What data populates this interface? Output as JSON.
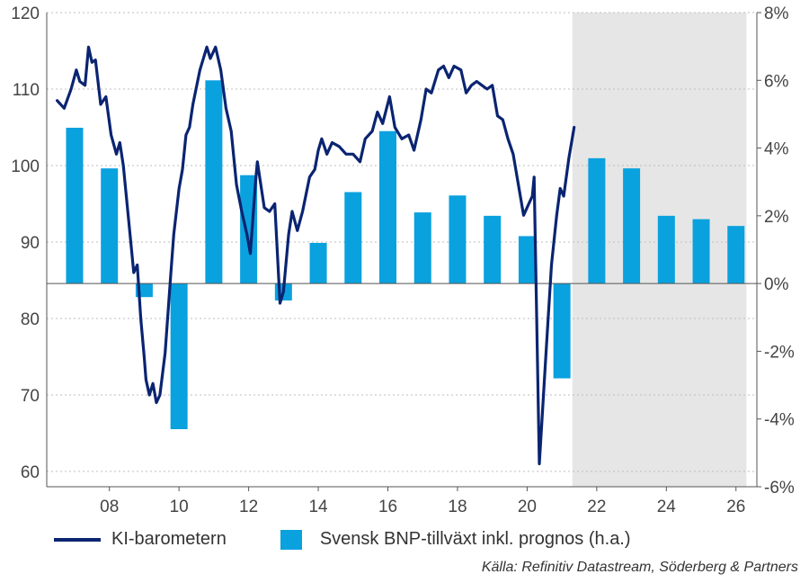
{
  "chart_data": {
    "type": "bar+line",
    "left_axis": {
      "ticks": [
        60,
        70,
        80,
        90,
        100,
        110,
        120
      ],
      "ylim": [
        58,
        120
      ]
    },
    "right_axis": {
      "ticks": [
        "-6%",
        "-4%",
        "-2%",
        "0%",
        "2%",
        "4%",
        "6%",
        "8%"
      ],
      "values": [
        -6,
        -4,
        -2,
        0,
        2,
        4,
        6,
        8
      ],
      "ylim": [
        -6,
        8
      ]
    },
    "x_axis": {
      "ticks": [
        "08",
        "10",
        "12",
        "14",
        "16",
        "18",
        "20",
        "22",
        "24",
        "26"
      ],
      "tick_years": [
        2008,
        2010,
        2012,
        2014,
        2016,
        2018,
        2020,
        2022,
        2024,
        2026
      ],
      "xlim": [
        2006.2,
        2026.6
      ]
    },
    "forecast_shading": {
      "from": 2021.3,
      "to": 2026.3
    },
    "bars": {
      "name": "Svensk BNP-tillväxt inkl. prognos (h.a.)",
      "color": "#0aa1df",
      "years": [
        2007,
        2008,
        2009,
        2010,
        2011,
        2012,
        2013,
        2014,
        2015,
        2016,
        2017,
        2018,
        2019,
        2020,
        2021,
        2022,
        2023,
        2024,
        2025,
        2026
      ],
      "values": [
        4.6,
        3.4,
        -0.4,
        -4.3,
        6.0,
        3.2,
        -0.5,
        1.2,
        2.7,
        4.5,
        2.1,
        2.6,
        2.0,
        1.4,
        -2.8,
        3.7,
        3.4,
        2.0,
        1.9,
        1.7
      ]
    },
    "line": {
      "name": "KI-barometern",
      "color": "#0a2471",
      "points": [
        [
          2006.5,
          108.5
        ],
        [
          2006.7,
          107.5
        ],
        [
          2006.9,
          110.0
        ],
        [
          2007.05,
          112.5
        ],
        [
          2007.15,
          111.0
        ],
        [
          2007.3,
          110.5
        ],
        [
          2007.4,
          115.5
        ],
        [
          2007.5,
          113.5
        ],
        [
          2007.6,
          113.8
        ],
        [
          2007.75,
          108.0
        ],
        [
          2007.9,
          109.0
        ],
        [
          2008.05,
          104.0
        ],
        [
          2008.2,
          101.5
        ],
        [
          2008.3,
          103.0
        ],
        [
          2008.4,
          100.0
        ],
        [
          2008.55,
          93.0
        ],
        [
          2008.7,
          86.0
        ],
        [
          2008.8,
          87.0
        ],
        [
          2008.9,
          80.0
        ],
        [
          2009.0,
          75.0
        ],
        [
          2009.05,
          72.0
        ],
        [
          2009.15,
          70.0
        ],
        [
          2009.25,
          71.5
        ],
        [
          2009.35,
          69.0
        ],
        [
          2009.45,
          70.0
        ],
        [
          2009.6,
          75.5
        ],
        [
          2009.75,
          85.0
        ],
        [
          2009.85,
          91.0
        ],
        [
          2010.0,
          97.0
        ],
        [
          2010.1,
          99.5
        ],
        [
          2010.2,
          104.0
        ],
        [
          2010.3,
          105.0
        ],
        [
          2010.4,
          108.0
        ],
        [
          2010.6,
          112.5
        ],
        [
          2010.8,
          115.5
        ],
        [
          2010.9,
          114.0
        ],
        [
          2011.05,
          115.5
        ],
        [
          2011.2,
          112.5
        ],
        [
          2011.35,
          107.5
        ],
        [
          2011.5,
          104.5
        ],
        [
          2011.65,
          97.5
        ],
        [
          2011.8,
          94.0
        ],
        [
          2011.95,
          91.0
        ],
        [
          2012.05,
          88.5
        ],
        [
          2012.2,
          98.0
        ],
        [
          2012.25,
          100.5
        ],
        [
          2012.45,
          94.5
        ],
        [
          2012.6,
          94.0
        ],
        [
          2012.75,
          95.0
        ],
        [
          2012.9,
          82.0
        ],
        [
          2013.0,
          83.5
        ],
        [
          2013.15,
          91.0
        ],
        [
          2013.25,
          94.0
        ],
        [
          2013.4,
          91.5
        ],
        [
          2013.55,
          94.0
        ],
        [
          2013.75,
          98.5
        ],
        [
          2013.9,
          99.5
        ],
        [
          2014.0,
          102.0
        ],
        [
          2014.1,
          103.5
        ],
        [
          2014.25,
          101.5
        ],
        [
          2014.4,
          103.0
        ],
        [
          2014.6,
          102.5
        ],
        [
          2014.8,
          101.5
        ],
        [
          2015.0,
          101.5
        ],
        [
          2015.2,
          100.5
        ],
        [
          2015.35,
          103.5
        ],
        [
          2015.55,
          104.5
        ],
        [
          2015.7,
          107.0
        ],
        [
          2015.85,
          105.5
        ],
        [
          2016.05,
          109.0
        ],
        [
          2016.2,
          105.0
        ],
        [
          2016.4,
          103.5
        ],
        [
          2016.6,
          104.0
        ],
        [
          2016.75,
          102.0
        ],
        [
          2016.95,
          106.0
        ],
        [
          2017.1,
          110.0
        ],
        [
          2017.25,
          109.5
        ],
        [
          2017.45,
          112.5
        ],
        [
          2017.6,
          113.0
        ],
        [
          2017.75,
          111.5
        ],
        [
          2017.9,
          113.0
        ],
        [
          2018.1,
          112.5
        ],
        [
          2018.25,
          109.5
        ],
        [
          2018.4,
          110.5
        ],
        [
          2018.55,
          111.0
        ],
        [
          2018.7,
          110.5
        ],
        [
          2018.85,
          110.0
        ],
        [
          2019.0,
          110.5
        ],
        [
          2019.15,
          106.5
        ],
        [
          2019.3,
          106.0
        ],
        [
          2019.45,
          103.5
        ],
        [
          2019.6,
          101.5
        ],
        [
          2019.75,
          97.5
        ],
        [
          2019.9,
          93.5
        ],
        [
          2020.05,
          95.0
        ],
        [
          2020.15,
          96.0
        ],
        [
          2020.2,
          98.5
        ],
        [
          2020.35,
          61.0
        ],
        [
          2020.55,
          76.0
        ],
        [
          2020.7,
          87.0
        ],
        [
          2020.85,
          93.5
        ],
        [
          2020.95,
          97.0
        ],
        [
          2021.05,
          96.0
        ],
        [
          2021.2,
          101.0
        ],
        [
          2021.35,
          105.0
        ]
      ]
    }
  },
  "legend": {
    "line_label": "KI-barometern",
    "bar_label": "Svensk BNP-tillväxt inkl. prognos (h.a.)"
  },
  "source": "Källa: Refinitiv Datastream, Söderberg & Partners"
}
